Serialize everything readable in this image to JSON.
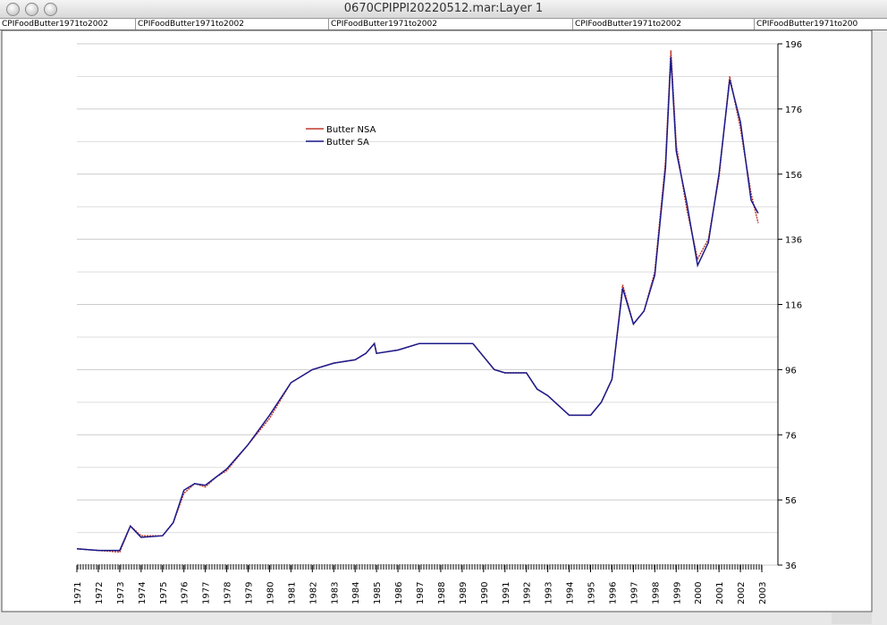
{
  "window": {
    "title": "0670CPIPPI20220512.mar:Layer 1"
  },
  "header_labels": [
    "CPIFoodButter1971to2002",
    "CPIFoodButter1971to2002",
    "CPIFoodButter1971to2002",
    "CPIFoodButter1971to2002",
    "CPIFoodButter1971to200"
  ],
  "chart_data": {
    "type": "line",
    "x": [
      1971,
      1972,
      1973,
      1973.5,
      1974,
      1975,
      1975.5,
      1976,
      1976.5,
      1977,
      1977.5,
      1978,
      1979,
      1980,
      1981,
      1982,
      1983,
      1984,
      1984.5,
      1984.9,
      1985,
      1986,
      1987,
      1988,
      1989,
      1989.5,
      1990,
      1990.5,
      1991,
      1992,
      1992.5,
      1993,
      1994,
      1995,
      1995.5,
      1996,
      1996.5,
      1997,
      1997.5,
      1998,
      1998.5,
      1998.75,
      1999,
      1999.5,
      2000,
      2000.5,
      2001,
      2001.5,
      2002,
      2002.5,
      2002.83
    ],
    "series": [
      {
        "name": "Butter NSA",
        "color": "#c0392b",
        "values": [
          41,
          40.5,
          40,
          48,
          45,
          45,
          49,
          58,
          61,
          60,
          63,
          65,
          73,
          81,
          92,
          96,
          98,
          99,
          101,
          104,
          101,
          102,
          104,
          104,
          104,
          104,
          100,
          96,
          95,
          95,
          90,
          88,
          82,
          82,
          86,
          93,
          122,
          110,
          114,
          126,
          160,
          194,
          165,
          145,
          130,
          136,
          155,
          186,
          170,
          150,
          141
        ]
      },
      {
        "name": "Butter SA",
        "color": "#1a1a8c",
        "values": [
          41,
          40.5,
          40.5,
          48,
          44.5,
          45,
          49,
          59,
          61,
          60.5,
          63,
          65.5,
          73,
          82,
          92,
          96,
          98,
          99,
          101,
          104,
          101,
          102,
          104,
          104,
          104,
          104,
          100,
          96,
          95,
          95,
          90,
          88,
          82,
          82,
          86,
          93,
          121,
          110,
          114,
          125,
          158,
          192,
          163,
          147,
          128,
          135,
          156,
          185,
          172,
          148,
          144
        ]
      }
    ],
    "xlim": [
      1971,
      2003
    ],
    "xticks": [
      1971,
      1972,
      1973,
      1974,
      1975,
      1976,
      1977,
      1978,
      1979,
      1980,
      1981,
      1982,
      1983,
      1984,
      1985,
      1986,
      1987,
      1988,
      1989,
      1990,
      1991,
      1992,
      1993,
      1994,
      1995,
      1996,
      1997,
      1998,
      1999,
      2000,
      2001,
      2002,
      2003
    ],
    "ylim": [
      36,
      196
    ],
    "yticks": [
      36,
      56,
      76,
      96,
      116,
      136,
      156,
      176,
      196
    ],
    "minor_yticks": [
      46,
      66,
      86,
      106,
      126,
      146,
      166,
      186
    ],
    "grid": true,
    "legend": "top-left"
  }
}
